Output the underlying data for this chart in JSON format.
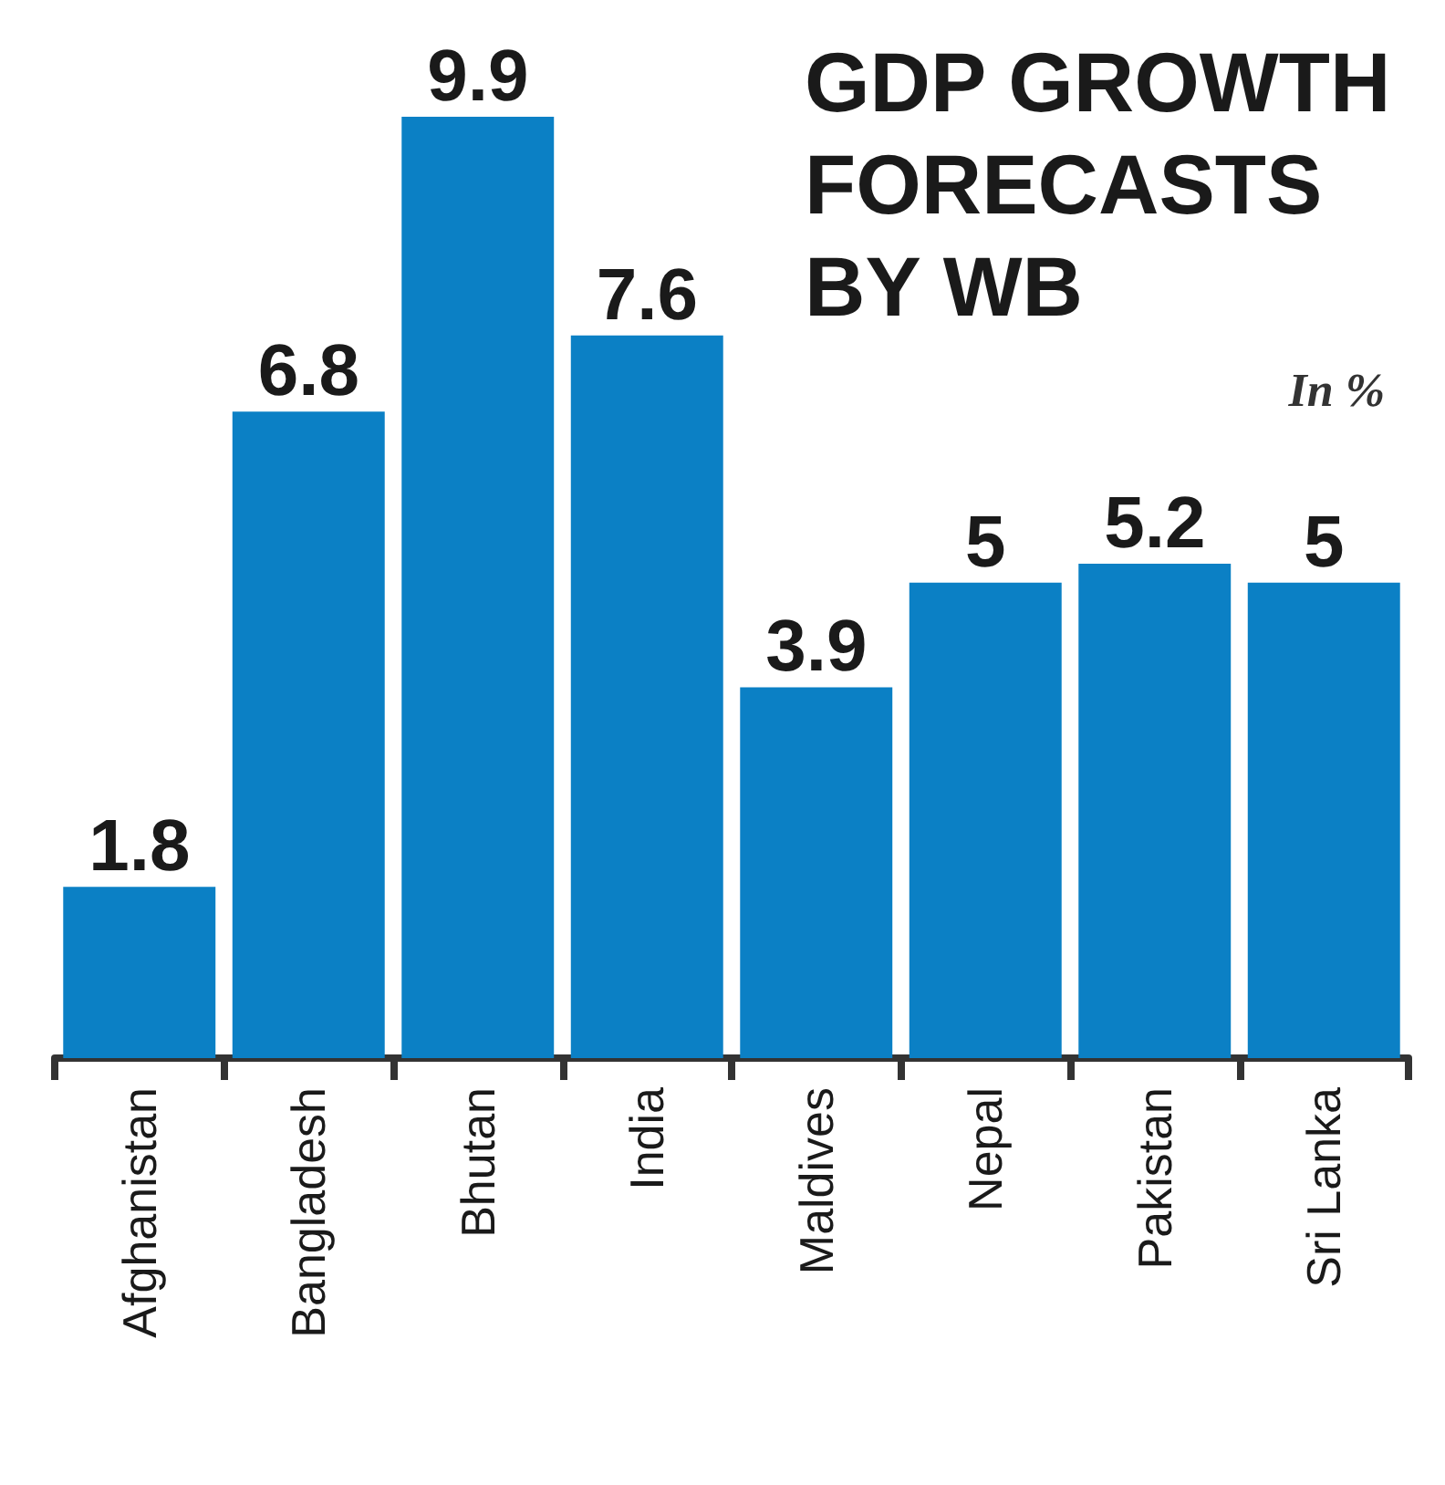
{
  "chart_data": {
    "type": "bar",
    "title": "GDP GROWTH\nFORECASTS\nBY WB",
    "subtitle": "In %",
    "categories": [
      "Afghanistan",
      "Bangladesh",
      "Bhutan",
      "India",
      "Maldives",
      "Nepal",
      "Pakistan",
      "Sri Lanka"
    ],
    "values": [
      1.8,
      6.8,
      9.9,
      7.6,
      3.9,
      5,
      5.2,
      5
    ],
    "color": "#0b80c5",
    "data_labels": true,
    "tick_labels": "x"
  }
}
